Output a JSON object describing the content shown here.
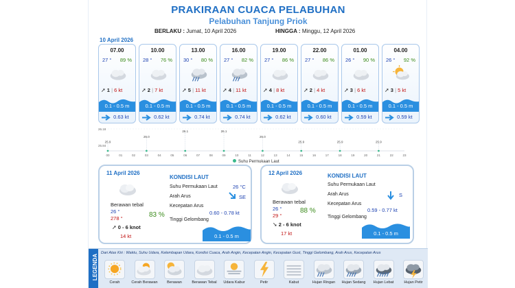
{
  "header": {
    "title": "PRAKIRAAN CUACA PELABUHAN",
    "subtitle": "Pelabuhan Tanjung Priok",
    "berlaku_label": "BERLAKU :",
    "berlaku_value": "Jumat, 10 April 2026",
    "hingga_label": "HINGGA :",
    "hingga_value": "Minggu, 12 April 2026"
  },
  "today_date": "10 April 2026",
  "forecasts": [
    {
      "time": "07.00",
      "temp": "27 °",
      "hum": "89 %",
      "icon": "cloudy-icon",
      "wind_speed": "1",
      "gust": "6 kt",
      "wave": "0.1 - 0.5 m",
      "current": "0.63 kt"
    },
    {
      "time": "10.00",
      "temp": "28 °",
      "hum": "76 %",
      "icon": "cloudy-icon",
      "wind_speed": "2",
      "gust": "7 kt",
      "wave": "0.1 - 0.5 m",
      "current": "0.62 kt"
    },
    {
      "time": "13.00",
      "temp": "30 °",
      "hum": "80 %",
      "icon": "light-rain-icon",
      "wind_speed": "5",
      "gust": "11 kt",
      "wave": "0.1 - 0.5 m",
      "current": "0.74 kt"
    },
    {
      "time": "16.00",
      "temp": "27 °",
      "hum": "82 %",
      "icon": "light-rain-icon",
      "wind_speed": "4",
      "gust": "11 kt",
      "wave": "0.1 - 0.5 m",
      "current": "0.74 kt"
    },
    {
      "time": "19.00",
      "temp": "27 °",
      "hum": "86 %",
      "icon": "cloudy-icon",
      "wind_speed": "4",
      "gust": "8 kt",
      "wave": "0.1 - 0.5 m",
      "current": "0.62 kt"
    },
    {
      "time": "22.00",
      "temp": "27 °",
      "hum": "86 %",
      "icon": "cloudy-icon",
      "wind_speed": "2",
      "gust": "4 kt",
      "wave": "0.1 - 0.5 m",
      "current": "0.60 kt"
    },
    {
      "time": "01.00",
      "temp": "26 °",
      "hum": "90 %",
      "icon": "cloudy-icon",
      "wind_speed": "3",
      "gust": "6 kt",
      "wave": "0.1 - 0.5 m",
      "current": "0.59 kt"
    },
    {
      "time": "04.00",
      "temp": "26 °",
      "hum": "92 %",
      "icon": "partly-cloudy-icon",
      "wind_speed": "3",
      "gust": "5 kt",
      "wave": "0.1 - 0.5 m",
      "current": "0.59 kt"
    }
  ],
  "sst_chart": {
    "y_ticks": [
      "26.18",
      "25.84"
    ],
    "hours": [
      "00",
      "01",
      "02",
      "03",
      "04",
      "05",
      "06",
      "07",
      "08",
      "09",
      "10",
      "11",
      "12",
      "13",
      "14",
      "15",
      "16",
      "17",
      "18",
      "19",
      "20",
      "21",
      "22",
      "23"
    ],
    "points": [
      {
        "hour": 0,
        "value": "25.9"
      },
      {
        "hour": 3,
        "value": "26.0"
      },
      {
        "hour": 6,
        "value": "26.1"
      },
      {
        "hour": 9,
        "value": "26.1"
      },
      {
        "hour": 12,
        "value": "26.0"
      },
      {
        "hour": 15,
        "value": "25.9"
      },
      {
        "hour": 18,
        "value": "25.9"
      },
      {
        "hour": 21,
        "value": "25.9"
      }
    ],
    "legend": "Suhu Permukaan Laut"
  },
  "day1": {
    "date": "11 April 2026",
    "condition": "Berawan tebal",
    "temp": "26 °",
    "wind_dir": "278 °",
    "hum": "83 %",
    "wind_range": "0 - 6 knot",
    "gust": "14 kt",
    "kondisi_title": "KONDISI LAUT",
    "sst_label": "Suhu Permukaan Laut",
    "sst_value": "26 °C",
    "arus_label": "Arah Arus",
    "arus_value": "SE",
    "kec_label": "Kecepatan Arus",
    "kec_value": "0.60 - 0.78 kt",
    "gel_label": "Tinggi Gelombang",
    "gel_value": "0.1 - 0.5 m"
  },
  "day2": {
    "date": "12 April 2026",
    "condition": "Berawan tebal",
    "temp": "26 °",
    "temp2": "29 °",
    "hum": "88 %",
    "wind_range": "2 - 6 knot",
    "gust": "17 kt",
    "kondisi_title": "KONDISI LAUT",
    "sst_label": "Suhu Permukaan Laut",
    "arus_label": "Arah Arus",
    "arus_value": "S",
    "kec_label": "Kecepatan Arus",
    "kec_value": "0.59 - 0.77 kt",
    "gel_label": "Tinggi Gelombang",
    "gel_value": "0.1 - 0.5 m"
  },
  "legend": {
    "title": "LEGENDA",
    "note": "Dari Atas Kiri : Waktu, Suhu Udara, Kelembapan Udara, Kondisi Cuaca, Arah Angin, Kecepatan Angin, Kecepatan Gust, Tinggi Gelombang, Arah Arus, Kecepatan Arus",
    "items": [
      {
        "name": "Cerah",
        "icon": "sun-icon"
      },
      {
        "name": "Cerah Berawan",
        "icon": "sun-cloud-icon"
      },
      {
        "name": "Berawan",
        "icon": "cloud-sun-icon"
      },
      {
        "name": "Berawan Tebal",
        "icon": "cloudy-icon"
      },
      {
        "name": "Udara Kabur",
        "icon": "haze-icon"
      },
      {
        "name": "Petir",
        "icon": "lightning-icon"
      },
      {
        "name": "Kabut",
        "icon": "fog-icon"
      },
      {
        "name": "Hujan Ringan",
        "icon": "light-rain-icon"
      },
      {
        "name": "Hujan Sedang",
        "icon": "moderate-rain-icon"
      },
      {
        "name": "Hujan Lebat",
        "icon": "heavy-rain-icon"
      },
      {
        "name": "Hujan Petir",
        "icon": "thunderstorm-icon"
      }
    ]
  },
  "colors": {
    "brand": "#1f6fc4",
    "wave": "#2a8fe0",
    "gust": "#c01010",
    "temp": "#1a3fb0",
    "hum": "#3a8a1a",
    "sst_dot": "#39b98c"
  }
}
